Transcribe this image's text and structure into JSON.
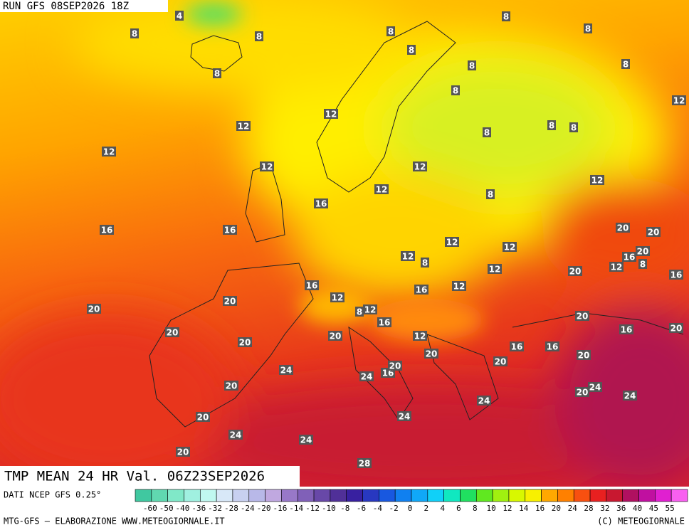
{
  "header": {
    "run": "RUN GFS 08SEP2026 18Z"
  },
  "map": {
    "title": "TMP MEAN 24 HR Val. 06Z23SEP2026",
    "labels": [
      "4",
      "8",
      "8",
      "8",
      "8",
      "8",
      "8",
      "8",
      "8",
      "8",
      "8",
      "12",
      "12",
      "12",
      "8",
      "8",
      "8",
      "12",
      "12",
      "12",
      "12",
      "12",
      "8",
      "16",
      "16",
      "16",
      "20",
      "20",
      "12",
      "12",
      "12",
      "8",
      "16",
      "20",
      "12",
      "8",
      "12",
      "20",
      "16",
      "16",
      "16",
      "12",
      "12",
      "20",
      "20",
      "12",
      "8",
      "16",
      "20",
      "16",
      "20",
      "20",
      "20",
      "12",
      "20",
      "16",
      "16",
      "20",
      "20",
      "24",
      "16",
      "20",
      "24",
      "20",
      "20",
      "20",
      "24",
      "24",
      "24",
      "24",
      "20",
      "24",
      "24",
      "20",
      "28"
    ]
  },
  "legend": {
    "source": "DATI NCEP GFS 0.25°",
    "labels": [
      "-60",
      "-50",
      "-40",
      "-36",
      "-32",
      "-28",
      "-24",
      "-20",
      "-16",
      "-14",
      "-12",
      "-10",
      "-8",
      "-6",
      "-4",
      "-2",
      "0",
      "2",
      "4",
      "6",
      "8",
      "10",
      "12",
      "14",
      "16",
      "20",
      "24",
      "28",
      "32",
      "36",
      "40",
      "45",
      "55"
    ]
  },
  "footer": {
    "credit": "MTG-GFS — ELABORAZIONE WWW.METEOGIORNALE.IT",
    "copyright": "(C) METEOGIORNALE"
  }
}
